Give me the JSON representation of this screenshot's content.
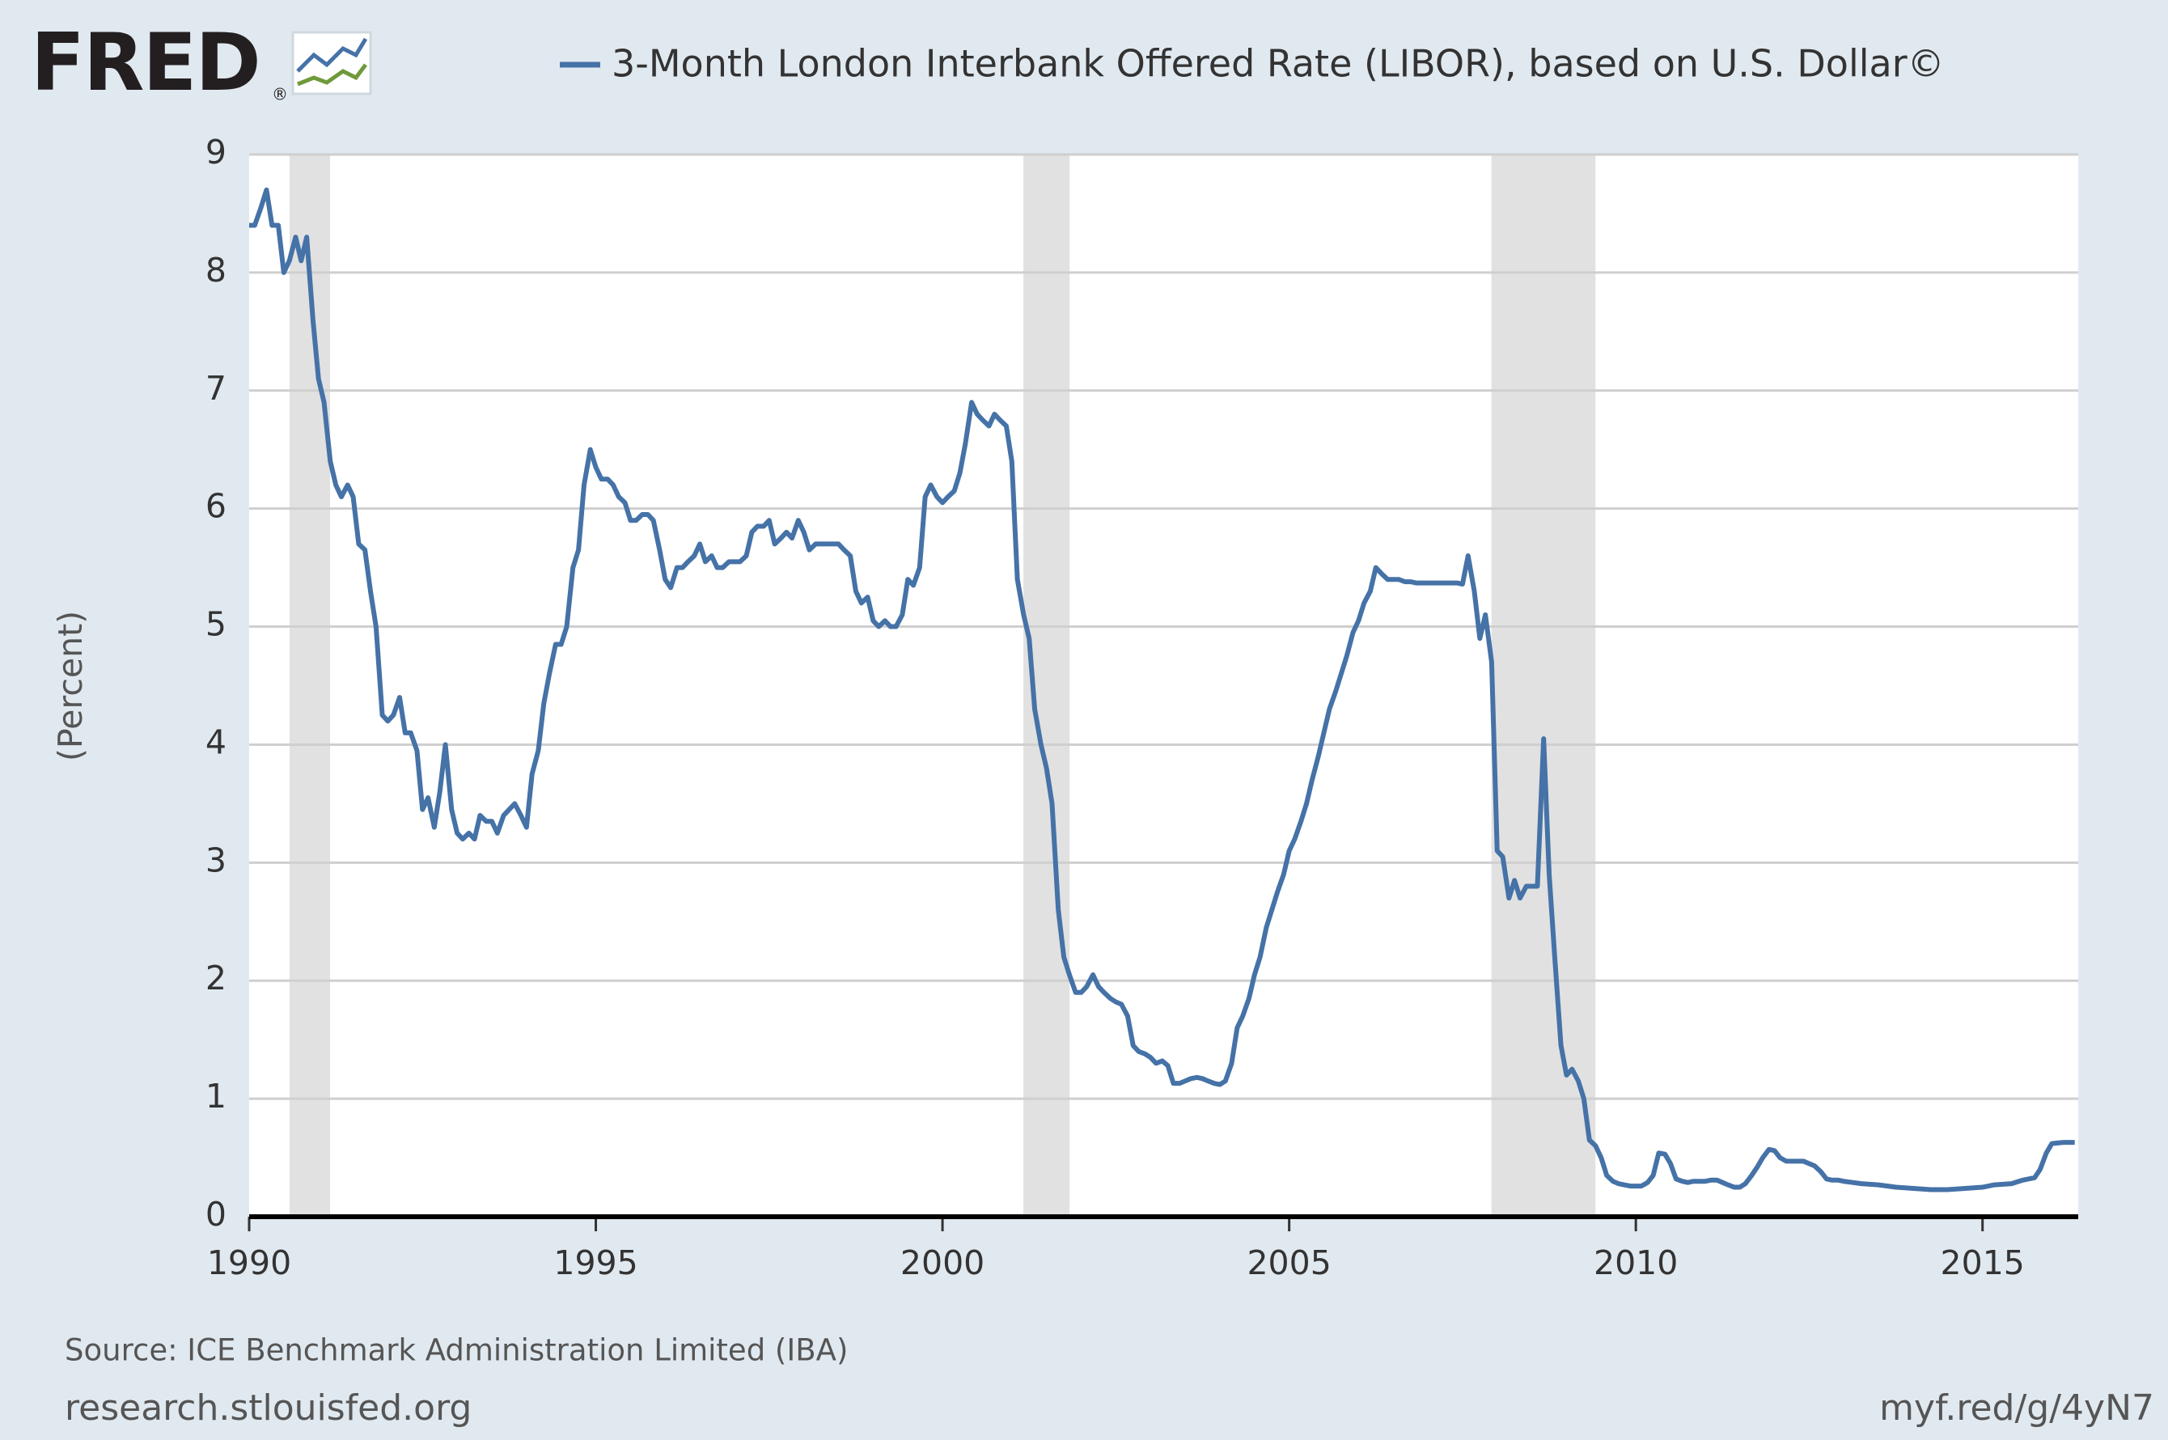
{
  "logo": "FRED",
  "logo_mark": "®",
  "chart_data": {
    "type": "line",
    "series": [
      {
        "name": "3-Month London Interbank Offered Rate (LIBOR), based on U.S. Dollar©",
        "color": "#4572a7",
        "values": [
          8.4,
          8.4,
          8.55,
          8.7,
          8.4,
          8.4,
          8.0,
          8.1,
          8.3,
          8.1,
          8.3,
          7.6,
          7.1,
          6.9,
          6.4,
          6.2,
          6.1,
          6.2,
          6.1,
          5.7,
          5.65,
          5.3,
          5.0,
          4.25,
          4.2,
          4.25,
          4.4,
          4.1,
          4.1,
          3.95,
          3.45,
          3.55,
          3.3,
          3.6,
          4.0,
          3.45,
          3.25,
          3.2,
          3.25,
          3.2,
          3.4,
          3.35,
          3.35,
          3.25,
          3.4,
          3.45,
          3.5,
          3.4,
          3.3,
          3.75,
          3.95,
          4.35,
          4.6,
          4.85,
          4.85,
          5.0,
          5.5,
          5.65,
          6.2,
          6.5,
          6.35,
          6.25,
          6.25,
          6.2,
          6.1,
          6.05,
          5.9,
          5.9,
          5.95,
          5.95,
          5.9,
          5.65,
          5.4,
          5.33,
          5.5,
          5.5,
          5.55,
          5.6,
          5.7,
          5.55,
          5.6,
          5.5,
          5.5,
          5.55,
          5.55,
          5.55,
          5.6,
          5.8,
          5.85,
          5.85,
          5.9,
          5.7,
          5.75,
          5.8,
          5.75,
          5.9,
          5.8,
          5.65,
          5.7,
          5.7,
          5.7,
          5.7,
          5.7,
          5.65,
          5.6,
          5.3,
          5.2,
          5.25,
          5.05,
          5.0,
          5.05,
          5.0,
          5.0,
          5.1,
          5.4,
          5.35,
          5.5,
          6.1,
          6.2,
          6.1,
          6.05,
          6.1,
          6.15,
          6.3,
          6.55,
          6.9,
          6.8,
          6.75,
          6.7,
          6.8,
          6.75,
          6.7,
          6.4,
          5.4,
          5.1,
          4.9,
          4.3,
          4.0,
          3.8,
          3.5,
          2.6,
          2.2,
          2.05,
          1.9,
          1.9,
          1.95,
          2.05,
          1.95,
          1.9,
          1.85,
          1.82,
          1.8,
          1.7,
          1.45,
          1.4,
          1.38,
          1.35,
          1.3,
          1.32,
          1.28,
          1.13,
          1.13,
          1.15,
          1.17,
          1.18,
          1.17,
          1.15,
          1.13,
          1.12,
          1.15,
          1.3,
          1.6,
          1.7,
          1.85,
          2.05,
          2.2,
          2.45,
          2.6,
          2.75,
          2.9,
          3.1,
          3.2,
          3.35,
          3.5,
          3.7,
          3.9,
          4.1,
          4.3,
          4.45,
          4.6,
          4.75,
          4.95,
          5.05,
          5.2,
          5.3,
          5.5,
          5.45,
          5.4,
          5.4,
          5.4,
          5.38,
          5.38,
          5.37,
          5.37,
          5.37,
          5.37,
          5.37,
          5.37,
          5.37,
          5.37,
          5.36,
          5.6,
          5.3,
          4.9,
          5.1,
          4.7,
          3.1,
          3.05,
          2.7,
          2.85,
          2.7,
          2.8,
          2.8,
          2.8,
          4.05,
          2.9,
          2.2,
          1.45,
          1.2,
          1.25,
          1.15,
          1.0,
          0.65,
          0.6,
          0.5,
          0.35,
          0.3,
          0.28,
          0.27,
          0.26,
          0.26,
          0.26,
          0.29,
          0.35,
          0.54,
          0.53,
          0.45,
          0.32,
          0.3,
          0.29,
          0.3,
          0.3,
          0.3,
          0.31,
          0.31,
          0.29,
          0.27,
          0.25,
          0.25,
          0.28,
          0.35,
          0.42,
          0.5,
          0.57,
          0.56,
          0.5,
          0.47,
          0.47,
          0.47,
          0.47,
          0.45,
          0.43,
          0.38,
          0.32,
          0.31,
          0.31,
          0.3,
          0.28,
          0.27,
          0.25,
          0.24,
          0.23,
          0.23,
          0.24,
          0.25,
          0.27,
          0.28,
          0.31,
          0.33,
          0.4,
          0.54,
          0.62,
          0.63,
          0.63
        ]
      }
    ],
    "x": [
      1990.0,
      1990.08,
      1990.17,
      1990.25,
      1990.33,
      1990.42,
      1990.5,
      1990.58,
      1990.67,
      1990.75,
      1990.83,
      1990.92,
      1991.0,
      1991.08,
      1991.17,
      1991.25,
      1991.33,
      1991.42,
      1991.5,
      1991.58,
      1991.67,
      1991.75,
      1991.83,
      1991.92,
      1992.0,
      1992.08,
      1992.17,
      1992.25,
      1992.33,
      1992.42,
      1992.5,
      1992.58,
      1992.67,
      1992.75,
      1992.83,
      1992.92,
      1993.0,
      1993.08,
      1993.17,
      1993.25,
      1993.33,
      1993.42,
      1993.5,
      1993.58,
      1993.67,
      1993.75,
      1993.83,
      1993.92,
      1994.0,
      1994.08,
      1994.17,
      1994.25,
      1994.33,
      1994.42,
      1994.5,
      1994.58,
      1994.67,
      1994.75,
      1994.83,
      1994.92,
      1995.0,
      1995.08,
      1995.17,
      1995.25,
      1995.33,
      1995.42,
      1995.5,
      1995.58,
      1995.67,
      1995.75,
      1995.83,
      1995.92,
      1996.0,
      1996.08,
      1996.17,
      1996.25,
      1996.33,
      1996.42,
      1996.5,
      1996.58,
      1996.67,
      1996.75,
      1996.83,
      1996.92,
      1997.0,
      1997.08,
      1997.17,
      1997.25,
      1997.33,
      1997.42,
      1997.5,
      1997.58,
      1997.67,
      1997.75,
      1997.83,
      1997.92,
      1998.0,
      1998.08,
      1998.17,
      1998.25,
      1998.33,
      1998.42,
      1998.5,
      1998.58,
      1998.67,
      1998.75,
      1998.83,
      1998.92,
      1999.0,
      1999.08,
      1999.17,
      1999.25,
      1999.33,
      1999.42,
      1999.5,
      1999.58,
      1999.67,
      1999.75,
      1999.83,
      1999.92,
      2000.0,
      2000.08,
      2000.17,
      2000.25,
      2000.33,
      2000.42,
      2000.5,
      2000.58,
      2000.67,
      2000.75,
      2000.83,
      2000.92,
      2001.0,
      2001.08,
      2001.17,
      2001.25,
      2001.33,
      2001.42,
      2001.5,
      2001.58,
      2001.67,
      2001.75,
      2001.83,
      2001.92,
      2002.0,
      2002.08,
      2002.17,
      2002.25,
      2002.33,
      2002.42,
      2002.5,
      2002.58,
      2002.67,
      2002.75,
      2002.83,
      2002.92,
      2003.0,
      2003.08,
      2003.17,
      2003.25,
      2003.33,
      2003.42,
      2003.5,
      2003.58,
      2003.67,
      2003.75,
      2003.83,
      2003.92,
      2004.0,
      2004.08,
      2004.17,
      2004.25,
      2004.33,
      2004.42,
      2004.5,
      2004.58,
      2004.67,
      2004.75,
      2004.83,
      2004.92,
      2005.0,
      2005.08,
      2005.17,
      2005.25,
      2005.33,
      2005.42,
      2005.5,
      2005.58,
      2005.67,
      2005.75,
      2005.83,
      2005.92,
      2006.0,
      2006.08,
      2006.17,
      2006.25,
      2006.33,
      2006.42,
      2006.5,
      2006.58,
      2006.67,
      2006.75,
      2006.83,
      2006.92,
      2007.0,
      2007.08,
      2007.17,
      2007.25,
      2007.33,
      2007.42,
      2007.5,
      2007.58,
      2007.67,
      2007.75,
      2007.83,
      2007.92,
      2008.0,
      2008.08,
      2008.17,
      2008.25,
      2008.33,
      2008.42,
      2008.5,
      2008.58,
      2008.67,
      2008.75,
      2008.83,
      2008.92,
      2009.0,
      2009.08,
      2009.17,
      2009.25,
      2009.33,
      2009.42,
      2009.5,
      2009.58,
      2009.67,
      2009.75,
      2009.83,
      2009.92,
      2010.0,
      2010.08,
      2010.17,
      2010.25,
      2010.33,
      2010.42,
      2010.5,
      2010.58,
      2010.67,
      2010.75,
      2010.83,
      2010.92,
      2011.0,
      2011.08,
      2011.17,
      2011.25,
      2011.33,
      2011.42,
      2011.5,
      2011.58,
      2011.67,
      2011.75,
      2011.83,
      2011.92,
      2012.0,
      2012.08,
      2012.17,
      2012.25,
      2012.33,
      2012.42,
      2012.5,
      2012.58,
      2012.67,
      2012.75,
      2012.83,
      2012.92,
      2013.0,
      2013.25,
      2013.5,
      2013.75,
      2014.0,
      2014.25,
      2014.5,
      2014.75,
      2015.0,
      2015.17,
      2015.42,
      2015.58,
      2015.75,
      2015.83,
      2015.92,
      2016.0,
      2016.17,
      2016.33
    ],
    "xlim": [
      1990,
      2016.38
    ],
    "xticks": [
      1990,
      1995,
      2000,
      2005,
      2010,
      2015
    ],
    "ylim": [
      0,
      9
    ],
    "yticks": [
      0,
      1,
      2,
      3,
      4,
      5,
      6,
      7,
      8,
      9
    ],
    "grid": true,
    "ylabel": "(Percent)",
    "recessions": [
      [
        1990.583,
        1991.167
      ],
      [
        2001.167,
        2001.833
      ],
      [
        2007.917,
        2009.417
      ]
    ],
    "shade_color": "#e1e1e1",
    "source": "Source: ICE Benchmark Administration Limited (IBA)",
    "footer_left": "research.stlouisfed.org",
    "footer_right": "myf.red/g/4yN7"
  }
}
